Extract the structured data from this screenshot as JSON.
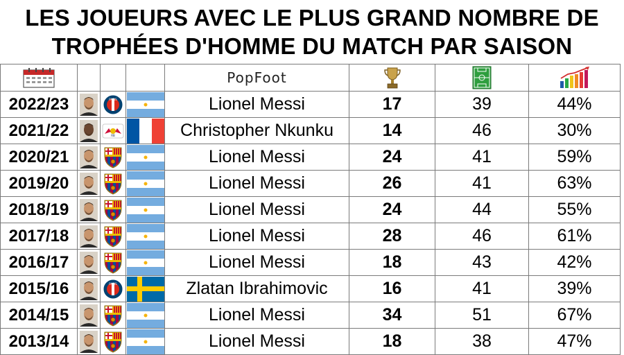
{
  "title": {
    "line1": "LES JOUEURS AVEC LE PLUS GRAND NOMBRE DE",
    "line2": "TROPHÉES D'HOMME DU MATCH PAR SAISON"
  },
  "header": {
    "brand": "PopFoot",
    "icons": [
      "calendar-icon",
      "trophy-icon",
      "football-pitch-icon",
      "bar-chart-icon"
    ]
  },
  "rows": [
    {
      "season": "2022/23",
      "player": "Lionel Messi",
      "club": "psg",
      "flag": "argentina",
      "trophies": "17",
      "matches": "39",
      "percent": "44%"
    },
    {
      "season": "2021/22",
      "player": "Christopher Nkunku",
      "club": "leipzig",
      "flag": "france",
      "trophies": "14",
      "matches": "46",
      "percent": "30%"
    },
    {
      "season": "2020/21",
      "player": "Lionel Messi",
      "club": "barcelona",
      "flag": "argentina",
      "trophies": "24",
      "matches": "41",
      "percent": "59%"
    },
    {
      "season": "2019/20",
      "player": "Lionel Messi",
      "club": "barcelona",
      "flag": "argentina",
      "trophies": "26",
      "matches": "41",
      "percent": "63%"
    },
    {
      "season": "2018/19",
      "player": "Lionel Messi",
      "club": "barcelona",
      "flag": "argentina",
      "trophies": "24",
      "matches": "44",
      "percent": "55%"
    },
    {
      "season": "2017/18",
      "player": "Lionel Messi",
      "club": "barcelona",
      "flag": "argentina",
      "trophies": "28",
      "matches": "46",
      "percent": "61%"
    },
    {
      "season": "2016/17",
      "player": "Lionel Messi",
      "club": "barcelona",
      "flag": "argentina",
      "trophies": "18",
      "matches": "43",
      "percent": "42%"
    },
    {
      "season": "2015/16",
      "player": "Zlatan Ibrahimovic",
      "club": "psg",
      "flag": "sweden",
      "trophies": "16",
      "matches": "41",
      "percent": "39%"
    },
    {
      "season": "2014/15",
      "player": "Lionel Messi",
      "club": "barcelona",
      "flag": "argentina",
      "trophies": "34",
      "matches": "51",
      "percent": "67%"
    },
    {
      "season": "2013/14",
      "player": "Lionel Messi",
      "club": "barcelona",
      "flag": "argentina",
      "trophies": "18",
      "matches": "38",
      "percent": "47%"
    }
  ],
  "colors": {
    "argentina_blue": "#74acdf",
    "argentina_sun": "#f6b40e",
    "france_blue": "#0055a4",
    "france_red": "#ef4135",
    "sweden_blue": "#006aa7",
    "sweden_yellow": "#fecc00",
    "psg_navy": "#004170",
    "psg_red": "#da291c",
    "barca_blue": "#004d98",
    "barca_red": "#a50044",
    "barca_gold": "#edbb00",
    "pitch_green": "#2e9e3e"
  }
}
